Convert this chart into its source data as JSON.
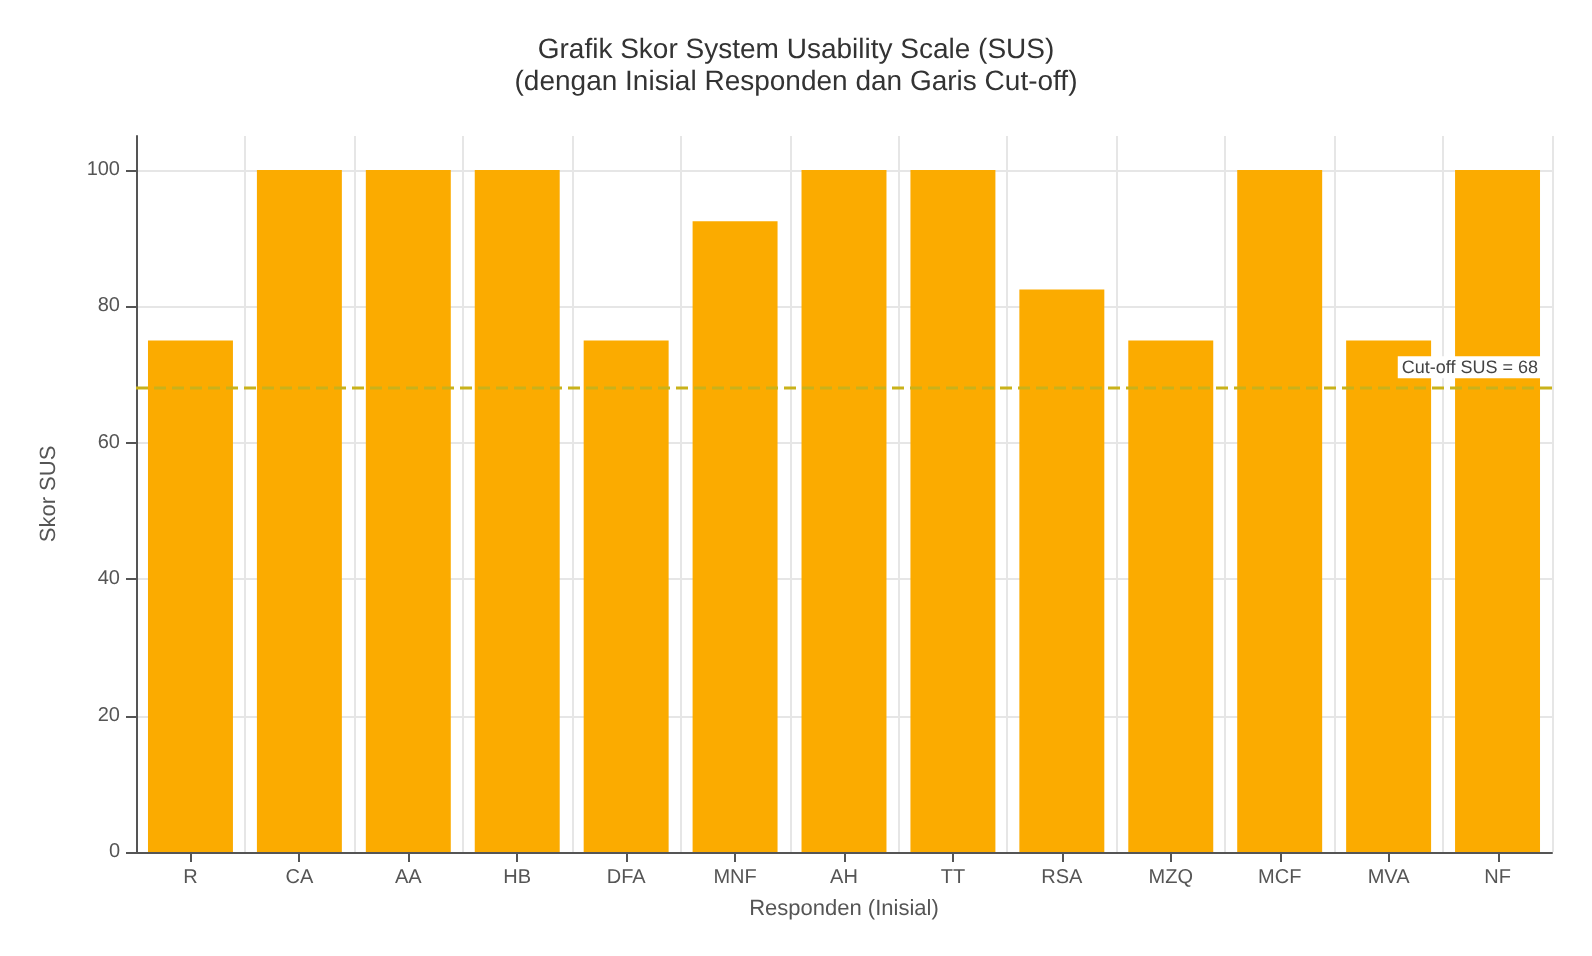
{
  "chart_data": {
    "type": "bar",
    "title": "Grafik Skor System Usability Scale (SUS)",
    "subtitle": "(dengan Inisial Responden dan Garis Cut-off)",
    "xlabel": "Responden (Inisial)",
    "ylabel": "Skor SUS",
    "categories": [
      "R",
      "CA",
      "AA",
      "HB",
      "DFA",
      "MNF",
      "AH",
      "TT",
      "RSA",
      "MZQ",
      "MCF",
      "MVA",
      "NF"
    ],
    "values": [
      75,
      100,
      100,
      100,
      75,
      92.5,
      100,
      100,
      82.5,
      75,
      100,
      75,
      100
    ],
    "color": "#fbab00",
    "ylim": [
      0,
      105
    ],
    "yticks": [
      0,
      20,
      40,
      60,
      80,
      100
    ],
    "grid": true,
    "ref_lines": [
      {
        "axis": "y",
        "value": 68,
        "label": "Cut-off SUS = 68",
        "color": "#c9b21a",
        "line_style": "dashed"
      }
    ]
  }
}
